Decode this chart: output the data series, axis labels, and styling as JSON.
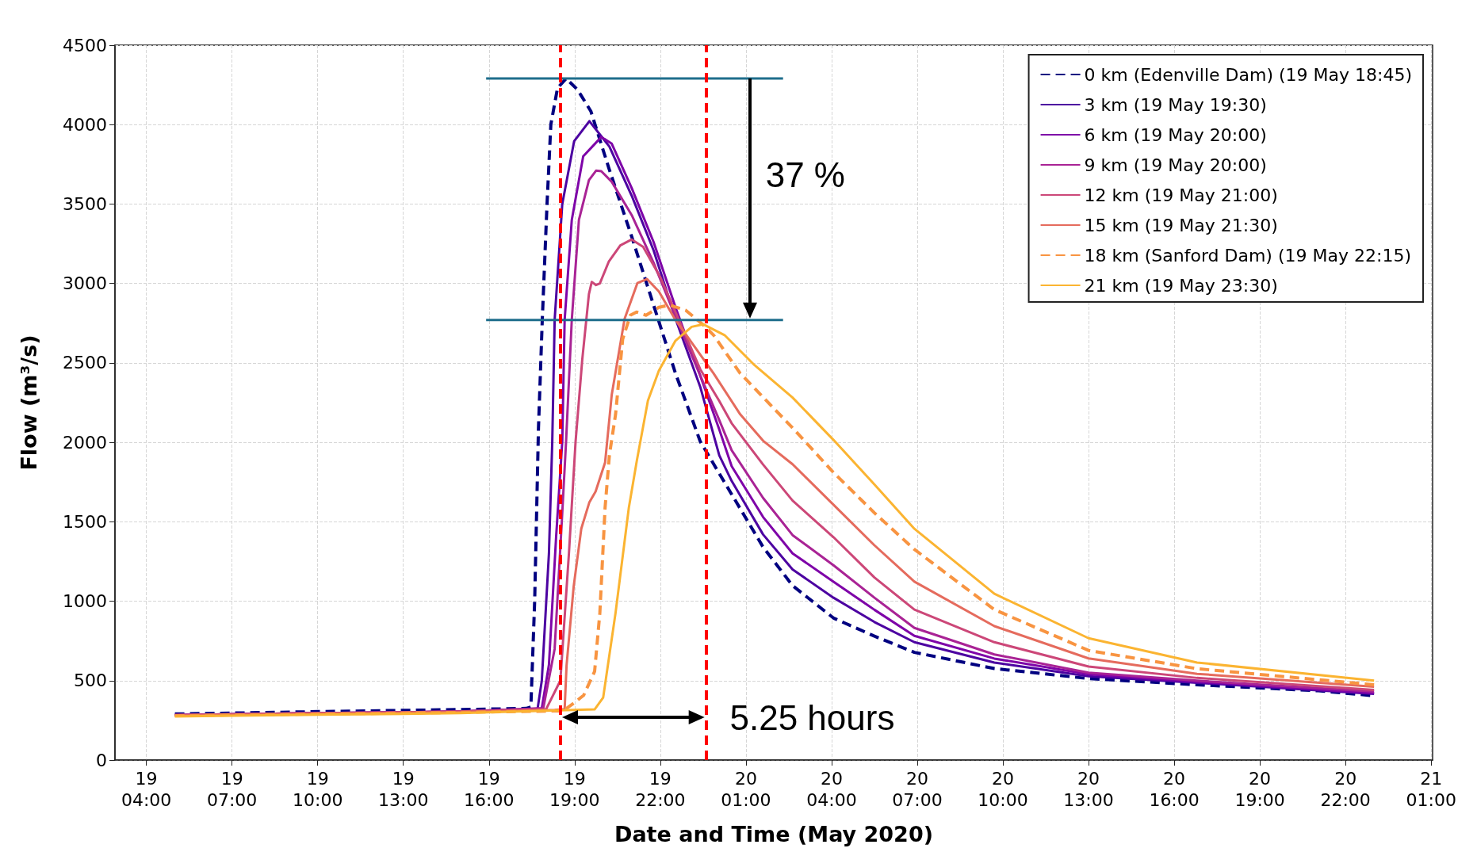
{
  "chart_data": {
    "type": "line",
    "xlabel": "Date and Time (May 2020)",
    "ylabel": "Flow (m³/s)",
    "xlim": [
      "2020-05-19T02:54",
      "2020-05-21T01:03"
    ],
    "ylim": [
      0,
      4500
    ],
    "xticks": [
      {
        "value": "2020-05-19T04:00",
        "label": "19\n04:00"
      },
      {
        "value": "2020-05-19T07:00",
        "label": "19\n07:00"
      },
      {
        "value": "2020-05-19T10:00",
        "label": "19\n10:00"
      },
      {
        "value": "2020-05-19T13:00",
        "label": "19\n13:00"
      },
      {
        "value": "2020-05-19T16:00",
        "label": "19\n16:00"
      },
      {
        "value": "2020-05-19T19:00",
        "label": "19\n19:00"
      },
      {
        "value": "2020-05-19T22:00",
        "label": "19\n22:00"
      },
      {
        "value": "2020-05-20T01:00",
        "label": "20\n01:00"
      },
      {
        "value": "2020-05-20T04:00",
        "label": "20\n04:00"
      },
      {
        "value": "2020-05-20T07:00",
        "label": "20\n07:00"
      },
      {
        "value": "2020-05-20T10:00",
        "label": "20\n10:00"
      },
      {
        "value": "2020-05-20T13:00",
        "label": "20\n13:00"
      },
      {
        "value": "2020-05-20T16:00",
        "label": "20\n16:00"
      },
      {
        "value": "2020-05-20T19:00",
        "label": "20\n19:00"
      },
      {
        "value": "2020-05-20T22:00",
        "label": "20\n22:00"
      },
      {
        "value": "2020-05-21T01:00",
        "label": "21\n01:00"
      }
    ],
    "yticks": [
      0,
      500,
      1000,
      1500,
      2000,
      2500,
      3000,
      3500,
      4000,
      4500
    ],
    "grid": true,
    "legend": "top right",
    "marker": "none",
    "series": [
      {
        "name": "0 km (Edenville Dam) (19 May 18:45)",
        "color": "#000080",
        "line_style": "dashed",
        "x": [
          "2020-05-19T05:00",
          "2020-05-19T10:00",
          "2020-05-19T15:00",
          "2020-05-19T17:18",
          "2020-05-19T17:28",
          "2020-05-19T17:36",
          "2020-05-19T17:44",
          "2020-05-19T17:52",
          "2020-05-19T18:02",
          "2020-05-19T18:10",
          "2020-05-19T18:24",
          "2020-05-19T18:42",
          "2020-05-19T19:06",
          "2020-05-19T19:34",
          "2020-05-19T20:12",
          "2020-05-19T21:00",
          "2020-05-19T21:46",
          "2020-05-19T22:32",
          "2020-05-19T23:24",
          "2020-05-20T00:30",
          "2020-05-20T01:36",
          "2020-05-20T02:38",
          "2020-05-20T04:04",
          "2020-05-20T05:30",
          "2020-05-20T06:54",
          "2020-05-20T09:42",
          "2020-05-20T13:00",
          "2020-05-20T16:48",
          "2020-05-20T21:03",
          "2020-05-20T23:00"
        ],
        "values": [
          290,
          305,
          318,
          325,
          334,
          1000,
          2090,
          2770,
          3500,
          4000,
          4230,
          4290,
          4220,
          4085,
          3725,
          3294,
          2863,
          2434,
          2005,
          1673,
          1341,
          1098,
          894,
          780,
          678,
          576,
          513,
          474,
          436,
          405
        ]
      },
      {
        "name": "3 km (19 May 19:30)",
        "color": "#4c02a1",
        "line_style": "solid",
        "x": [
          "2020-05-19T05:00",
          "2020-05-19T10:00",
          "2020-05-19T15:00",
          "2020-05-19T17:42",
          "2020-05-19T17:51",
          "2020-05-19T18:06",
          "2020-05-19T18:13",
          "2020-05-19T18:18",
          "2020-05-19T18:34",
          "2020-05-19T18:59",
          "2020-05-19T19:31",
          "2020-05-19T20:13",
          "2020-05-19T21:00",
          "2020-05-19T21:46",
          "2020-05-19T22:32",
          "2020-05-19T23:24",
          "2020-05-20T00:04",
          "2020-05-20T00:30",
          "2020-05-20T01:36",
          "2020-05-20T02:38",
          "2020-05-20T04:04",
          "2020-05-20T05:30",
          "2020-05-20T06:54",
          "2020-05-20T09:42",
          "2020-05-20T13:00",
          "2020-05-20T16:48",
          "2020-05-20T23:00"
        ],
        "values": [
          283,
          295,
          305,
          320,
          500,
          1300,
          2005,
          2770,
          3500,
          3896,
          4022,
          3862,
          3552,
          3208,
          2778,
          2349,
          1918,
          1757,
          1420,
          1200,
          1022,
          869,
          742,
          614,
          528,
          487,
          416
        ]
      },
      {
        "name": "6 km (19 May 20:00)",
        "color": "#7e03a8",
        "line_style": "solid",
        "x": [
          "2020-05-19T05:00",
          "2020-05-19T10:00",
          "2020-05-19T15:00",
          "2020-05-19T17:51",
          "2020-05-19T18:06",
          "2020-05-19T18:21",
          "2020-05-19T18:34",
          "2020-05-19T18:39",
          "2020-05-19T18:54",
          "2020-05-19T19:18",
          "2020-05-19T19:56",
          "2020-05-19T20:18",
          "2020-05-19T21:00",
          "2020-05-19T21:46",
          "2020-05-19T22:32",
          "2020-05-19T23:24",
          "2020-05-20T00:04",
          "2020-05-20T00:30",
          "2020-05-20T01:36",
          "2020-05-20T02:38",
          "2020-05-20T04:04",
          "2020-05-20T05:30",
          "2020-05-20T06:54",
          "2020-05-20T09:42",
          "2020-05-20T13:00",
          "2020-05-20T16:48",
          "2020-05-20T23:00"
        ],
        "values": [
          283,
          295,
          305,
          325,
          600,
          1400,
          2005,
          2770,
          3400,
          3800,
          3922,
          3880,
          3600,
          3260,
          2850,
          2420,
          2080,
          1850,
          1530,
          1301,
          1123,
          946,
          782,
          639,
          540,
          493,
          421
        ]
      },
      {
        "name": "9 km (19 May 20:00)",
        "color": "#a92395",
        "line_style": "solid",
        "x": [
          "2020-05-19T05:00",
          "2020-05-19T10:00",
          "2020-05-19T15:00",
          "2020-05-19T17:54",
          "2020-05-19T18:18",
          "2020-05-19T18:33",
          "2020-05-19T18:42",
          "2020-05-19T18:54",
          "2020-05-19T19:09",
          "2020-05-19T19:30",
          "2020-05-19T19:45",
          "2020-05-19T19:56",
          "2020-05-19T20:18",
          "2020-05-19T21:00",
          "2020-05-19T21:46",
          "2020-05-19T22:32",
          "2020-05-19T23:24",
          "2020-05-20T00:04",
          "2020-05-20T00:30",
          "2020-05-20T01:36",
          "2020-05-20T02:38",
          "2020-05-20T04:04",
          "2020-05-20T05:30",
          "2020-05-20T06:54",
          "2020-05-20T09:42",
          "2020-05-20T13:00",
          "2020-05-20T16:48",
          "2020-05-20T23:00"
        ],
        "values": [
          283,
          295,
          305,
          325,
          700,
          1500,
          2005,
          2770,
          3400,
          3650,
          3710,
          3707,
          3640,
          3430,
          3130,
          2790,
          2420,
          2140,
          1950,
          1650,
          1416,
          1226,
          1022,
          832,
          665,
          550,
          500,
          431
        ]
      },
      {
        "name": "12 km (19 May 21:00)",
        "color": "#cc4778",
        "line_style": "solid",
        "x": [
          "2020-05-19T05:00",
          "2020-05-19T10:00",
          "2020-05-19T15:00",
          "2020-05-19T18:00",
          "2020-05-19T18:30",
          "2020-05-19T18:48",
          "2020-05-19T19:02",
          "2020-05-19T19:16",
          "2020-05-19T19:30",
          "2020-05-19T19:36",
          "2020-05-19T19:45",
          "2020-05-19T19:53",
          "2020-05-19T20:12",
          "2020-05-19T20:36",
          "2020-05-19T21:00",
          "2020-05-19T21:24",
          "2020-05-19T22:00",
          "2020-05-19T22:32",
          "2020-05-19T23:24",
          "2020-05-20T00:04",
          "2020-05-20T00:30",
          "2020-05-20T01:36",
          "2020-05-20T02:38",
          "2020-05-20T04:04",
          "2020-05-20T05:30",
          "2020-05-20T06:54",
          "2020-05-20T09:42",
          "2020-05-20T13:00",
          "2020-05-20T16:48",
          "2020-05-20T23:00"
        ],
        "values": [
          283,
          295,
          305,
          320,
          500,
          1300,
          2005,
          2520,
          2933,
          3010,
          2990,
          3000,
          3139,
          3240,
          3277,
          3230,
          3040,
          2820,
          2460,
          2260,
          2120,
          1860,
          1633,
          1403,
          1149,
          947,
          742,
          589,
          517,
          441
        ]
      },
      {
        "name": "15 km (19 May 21:30)",
        "color": "#e56b5d",
        "line_style": "solid",
        "x": [
          "2020-05-19T05:00",
          "2020-05-19T10:00",
          "2020-05-19T15:00",
          "2020-05-19T18:18",
          "2020-05-19T18:39",
          "2020-05-19T18:43",
          "2020-05-19T18:58",
          "2020-05-19T19:14",
          "2020-05-19T19:31",
          "2020-05-19T19:44",
          "2020-05-19T20:04",
          "2020-05-19T20:18",
          "2020-05-19T20:45",
          "2020-05-19T21:12",
          "2020-05-19T21:32",
          "2020-05-19T21:57",
          "2020-05-19T22:30",
          "2020-05-19T23:52",
          "2020-05-20T00:48",
          "2020-05-20T01:36",
          "2020-05-20T02:38",
          "2020-05-20T04:04",
          "2020-05-20T05:30",
          "2020-05-20T06:54",
          "2020-05-20T09:42",
          "2020-05-20T13:00",
          "2020-05-20T16:48",
          "2020-05-20T23:00"
        ],
        "values": [
          280,
          292,
          302,
          315,
          320,
          594,
          1093,
          1457,
          1623,
          1690,
          1873,
          2300,
          2778,
          3003,
          3028,
          2950,
          2780,
          2434,
          2176,
          2010,
          1862,
          1607,
          1352,
          1123,
          843,
          640,
          543,
          462
        ]
      },
      {
        "name": "18 km (Sanford Dam) (19 May 22:15)",
        "color": "#f89441",
        "line_style": "dashed",
        "x": [
          "2020-05-19T05:00",
          "2020-05-19T10:00",
          "2020-05-19T15:00",
          "2020-05-19T18:36",
          "2020-05-19T18:58",
          "2020-05-19T19:19",
          "2020-05-19T19:42",
          "2020-05-19T19:53",
          "2020-05-19T20:04",
          "2020-05-19T20:13",
          "2020-05-19T20:26",
          "2020-05-19T20:41",
          "2020-05-19T20:57",
          "2020-05-19T21:10",
          "2020-05-19T21:30",
          "2020-05-19T21:57",
          "2020-05-19T22:20",
          "2020-05-19T22:54",
          "2020-05-19T23:30",
          "2020-05-19T23:52",
          "2020-05-20T00:48",
          "2020-05-20T02:38",
          "2020-05-20T04:04",
          "2020-05-20T05:30",
          "2020-05-20T06:54",
          "2020-05-20T09:42",
          "2020-05-20T13:00",
          "2020-05-20T16:48",
          "2020-05-20T23:00"
        ],
        "values": [
          280,
          290,
          300,
          310,
          358,
          408,
          558,
          927,
          1590,
          1918,
          2176,
          2650,
          2800,
          2820,
          2800,
          2850,
          2864,
          2830,
          2740,
          2675,
          2434,
          2091,
          1810,
          1556,
          1326,
          947,
          690,
          575,
          474
        ]
      },
      {
        "name": "21 km (19 May 23:30)",
        "color": "#fbb431",
        "line_style": "solid",
        "x": [
          "2020-05-19T05:00",
          "2020-05-19T10:00",
          "2020-05-19T15:00",
          "2020-05-19T19:42",
          "2020-05-19T20:00",
          "2020-05-19T20:26",
          "2020-05-19T20:54",
          "2020-05-19T21:11",
          "2020-05-19T21:34",
          "2020-05-19T21:57",
          "2020-05-19T22:32",
          "2020-05-19T23:06",
          "2020-05-19T23:30",
          "2020-05-20T00:15",
          "2020-05-20T01:18",
          "2020-05-20T02:38",
          "2020-05-20T04:04",
          "2020-05-20T05:30",
          "2020-05-20T06:54",
          "2020-05-20T09:42",
          "2020-05-20T13:00",
          "2020-05-20T16:48",
          "2020-05-20T23:00"
        ],
        "values": [
          275,
          285,
          295,
          319,
          394,
          927,
          1590,
          1890,
          2262,
          2451,
          2640,
          2727,
          2743,
          2675,
          2486,
          2282,
          2015,
          1735,
          1456,
          1047,
          767,
          614,
          500
        ]
      },
      {
        "color": "#1f6e8c",
        "line_style": "solid",
        "x": [
          "2020-05-19T15:54",
          "2020-05-20T02:18"
        ],
        "values": [
          4290,
          4290
        ]
      },
      {
        "color": "#1f6e8c",
        "line_style": "solid",
        "x": [
          "2020-05-19T15:54",
          "2020-05-20T02:18"
        ],
        "values": [
          2770,
          2770
        ]
      }
    ],
    "ref_lines": [
      {
        "axis": "x",
        "value": "2020-05-19T18:30",
        "color": "#ff0000",
        "line_style": "dashed"
      },
      {
        "axis": "x",
        "value": "2020-05-19T23:36",
        "color": "#ff0000",
        "line_style": "dashed"
      }
    ],
    "annotations": [
      "37 %",
      "5.25 hours"
    ]
  }
}
